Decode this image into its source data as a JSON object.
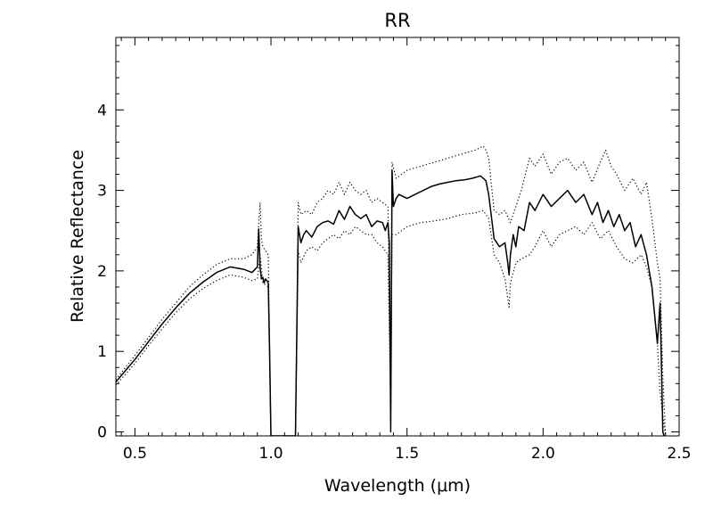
{
  "chart_data": {
    "type": "line",
    "title": "RR",
    "xlabel": "Wavelength (μm)",
    "ylabel": "Relative Reflectance",
    "xlim": [
      0.43,
      2.5
    ],
    "ylim": [
      -0.05,
      4.9
    ],
    "grid": false,
    "x_ticks": [
      {
        "value": 0.5,
        "label": "0.5"
      },
      {
        "value": 1.0,
        "label": "1.0"
      },
      {
        "value": 1.5,
        "label": "1.5"
      },
      {
        "value": 2.0,
        "label": "2.0"
      },
      {
        "value": 2.5,
        "label": "2.5"
      }
    ],
    "y_ticks": [
      {
        "value": 0,
        "label": "0"
      },
      {
        "value": 1,
        "label": "1"
      },
      {
        "value": 2,
        "label": "2"
      },
      {
        "value": 3,
        "label": "3"
      },
      {
        "value": 4,
        "label": "4"
      }
    ],
    "series": [
      {
        "role": "mean",
        "style": "solid",
        "color": "#000000",
        "x": [
          0.43,
          0.5,
          0.55,
          0.6,
          0.65,
          0.7,
          0.75,
          0.8,
          0.85,
          0.9,
          0.93,
          0.95,
          0.955,
          0.96,
          0.965,
          0.97,
          0.975,
          0.98,
          0.985,
          0.99,
          0.995,
          1.0,
          1.09,
          1.1,
          1.11,
          1.12,
          1.13,
          1.15,
          1.17,
          1.19,
          1.21,
          1.23,
          1.25,
          1.27,
          1.29,
          1.31,
          1.33,
          1.35,
          1.37,
          1.39,
          1.41,
          1.42,
          1.43,
          1.435,
          1.44,
          1.445,
          1.45,
          1.46,
          1.47,
          1.5,
          1.53,
          1.56,
          1.59,
          1.62,
          1.65,
          1.68,
          1.71,
          1.74,
          1.77,
          1.79,
          1.8,
          1.82,
          1.84,
          1.86,
          1.87,
          1.875,
          1.88,
          1.89,
          1.9,
          1.91,
          1.93,
          1.95,
          1.97,
          2.0,
          2.03,
          2.06,
          2.09,
          2.12,
          2.15,
          2.18,
          2.2,
          2.22,
          2.24,
          2.26,
          2.28,
          2.3,
          2.32,
          2.34,
          2.36,
          2.38,
          2.4,
          2.42,
          2.43,
          2.435,
          2.44,
          2.445,
          2.45
        ],
        "y": [
          0.62,
          0.9,
          1.12,
          1.34,
          1.54,
          1.72,
          1.86,
          1.98,
          2.05,
          2.02,
          1.98,
          2.05,
          2.52,
          2.05,
          1.9,
          1.92,
          1.85,
          1.9,
          1.88,
          1.85,
          1.0,
          -0.05,
          -0.05,
          2.55,
          2.35,
          2.45,
          2.5,
          2.42,
          2.55,
          2.6,
          2.62,
          2.58,
          2.75,
          2.64,
          2.8,
          2.7,
          2.65,
          2.7,
          2.55,
          2.62,
          2.6,
          2.5,
          2.6,
          2.35,
          0.0,
          3.25,
          2.8,
          2.9,
          2.95,
          2.9,
          2.95,
          3.0,
          3.05,
          3.08,
          3.1,
          3.12,
          3.13,
          3.15,
          3.18,
          3.12,
          2.95,
          2.4,
          2.3,
          2.35,
          2.1,
          1.95,
          2.2,
          2.45,
          2.3,
          2.55,
          2.5,
          2.85,
          2.75,
          2.95,
          2.8,
          2.9,
          3.0,
          2.85,
          2.95,
          2.7,
          2.85,
          2.6,
          2.75,
          2.55,
          2.7,
          2.5,
          2.6,
          2.3,
          2.45,
          2.2,
          1.8,
          1.1,
          1.6,
          0.8,
          0.0,
          -0.05,
          -0.05
        ]
      },
      {
        "role": "upper",
        "style": "dotted",
        "color": "#000000",
        "x": [
          0.43,
          0.5,
          0.55,
          0.6,
          0.65,
          0.7,
          0.75,
          0.8,
          0.85,
          0.9,
          0.93,
          0.95,
          0.96,
          0.965,
          0.97,
          0.99,
          1.0,
          1.09,
          1.1,
          1.11,
          1.13,
          1.15,
          1.17,
          1.19,
          1.21,
          1.23,
          1.25,
          1.27,
          1.29,
          1.31,
          1.33,
          1.35,
          1.37,
          1.39,
          1.41,
          1.43,
          1.44,
          1.445,
          1.46,
          1.5,
          1.55,
          1.6,
          1.65,
          1.7,
          1.75,
          1.78,
          1.79,
          1.8,
          1.82,
          1.84,
          1.86,
          1.88,
          1.9,
          1.92,
          1.95,
          1.97,
          2.0,
          2.03,
          2.06,
          2.09,
          2.12,
          2.15,
          2.18,
          2.21,
          2.23,
          2.25,
          2.27,
          2.3,
          2.33,
          2.36,
          2.38,
          2.4,
          2.42,
          2.43,
          2.44,
          2.45
        ],
        "y": [
          0.65,
          0.95,
          1.17,
          1.4,
          1.6,
          1.8,
          1.95,
          2.08,
          2.15,
          2.15,
          2.2,
          2.3,
          2.85,
          2.4,
          2.3,
          2.2,
          -0.05,
          -0.05,
          2.85,
          2.7,
          2.75,
          2.7,
          2.85,
          2.9,
          3.0,
          2.95,
          3.1,
          2.95,
          3.1,
          3.0,
          2.95,
          3.0,
          2.85,
          2.9,
          2.85,
          2.8,
          0.5,
          3.35,
          3.15,
          3.25,
          3.3,
          3.35,
          3.4,
          3.45,
          3.5,
          3.55,
          3.5,
          3.4,
          2.75,
          2.7,
          2.75,
          2.6,
          2.8,
          3.0,
          3.4,
          3.3,
          3.45,
          3.2,
          3.35,
          3.4,
          3.25,
          3.35,
          3.1,
          3.35,
          3.5,
          3.3,
          3.2,
          3.0,
          3.15,
          2.95,
          3.1,
          2.65,
          2.1,
          1.9,
          0.7,
          -0.05
        ]
      },
      {
        "role": "lower",
        "style": "dotted",
        "color": "#000000",
        "x": [
          0.43,
          0.5,
          0.55,
          0.6,
          0.65,
          0.7,
          0.75,
          0.8,
          0.85,
          0.9,
          0.93,
          0.95,
          0.96,
          0.97,
          0.99,
          1.0,
          1.09,
          1.1,
          1.11,
          1.13,
          1.15,
          1.17,
          1.19,
          1.21,
          1.23,
          1.25,
          1.27,
          1.29,
          1.31,
          1.33,
          1.35,
          1.37,
          1.39,
          1.41,
          1.43,
          1.44,
          1.445,
          1.46,
          1.5,
          1.55,
          1.6,
          1.65,
          1.7,
          1.75,
          1.78,
          1.79,
          1.8,
          1.82,
          1.84,
          1.86,
          1.875,
          1.88,
          1.9,
          1.92,
          1.95,
          1.97,
          2.0,
          2.03,
          2.06,
          2.09,
          2.12,
          2.15,
          2.18,
          2.21,
          2.24,
          2.27,
          2.3,
          2.33,
          2.36,
          2.38,
          2.4,
          2.42,
          2.43,
          2.44,
          2.45
        ],
        "y": [
          0.58,
          0.85,
          1.07,
          1.28,
          1.48,
          1.65,
          1.78,
          1.88,
          1.95,
          1.92,
          1.88,
          1.9,
          2.2,
          1.85,
          1.8,
          -0.05,
          -0.05,
          2.25,
          2.1,
          2.25,
          2.3,
          2.25,
          2.35,
          2.4,
          2.45,
          2.4,
          2.5,
          2.45,
          2.55,
          2.5,
          2.45,
          2.45,
          2.35,
          2.3,
          2.2,
          0.3,
          2.45,
          2.45,
          2.55,
          2.6,
          2.62,
          2.65,
          2.7,
          2.72,
          2.75,
          2.7,
          2.65,
          2.2,
          2.1,
          1.9,
          1.55,
          1.85,
          2.1,
          2.15,
          2.2,
          2.3,
          2.5,
          2.3,
          2.45,
          2.5,
          2.55,
          2.45,
          2.6,
          2.4,
          2.5,
          2.3,
          2.15,
          2.1,
          2.2,
          2.05,
          1.8,
          1.1,
          0.5,
          0.2,
          -0.05
        ]
      }
    ]
  }
}
